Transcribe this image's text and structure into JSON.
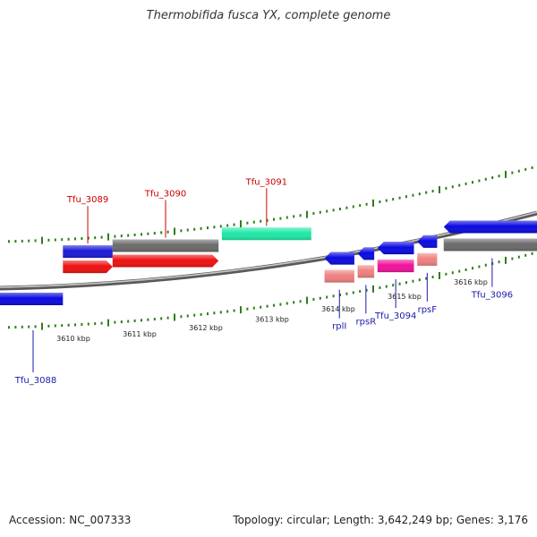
{
  "title": "Thermobifida fusca YX, complete genome",
  "footer": {
    "accession": "Accession: NC_007333",
    "summary": "Topology: circular; Length: 3,642,249 bp; Genes: 3,176"
  },
  "colors": {
    "backbone": "#888888",
    "tick": "#2e7d1a",
    "label_red": "#cc0000",
    "label_blue": "#1a1aa8"
  },
  "scale": {
    "unit": "kbp",
    "labels": [
      {
        "kbp": 3610,
        "text": "3610 kbp"
      },
      {
        "kbp": 3611,
        "text": "3611 kbp"
      },
      {
        "kbp": 3612,
        "text": "3612 kbp"
      },
      {
        "kbp": 3613,
        "text": "3613 kbp"
      },
      {
        "kbp": 3614,
        "text": "3614 kbp"
      },
      {
        "kbp": 3615,
        "text": "3615 kbp"
      },
      {
        "kbp": 3616,
        "text": "3616 kbp"
      }
    ]
  },
  "genes": [
    {
      "name": "Tfu_3088",
      "start_kbp": 3609.0,
      "end_kbp": 3609.95,
      "strand": "-",
      "cds_color": "#0a0ae0",
      "feat_color": "",
      "label_color": "#1a1aa8"
    },
    {
      "name": "Tfu_3089",
      "start_kbp": 3609.95,
      "end_kbp": 3610.7,
      "strand": "+",
      "cds_color": "#ee1111",
      "feat_color": "#1a1ad8",
      "label_color": "#cc0000"
    },
    {
      "name": "Tfu_3090",
      "start_kbp": 3610.7,
      "end_kbp": 3612.3,
      "strand": "+",
      "cds_color": "#ee1111",
      "feat_color": "#6b6b6b",
      "label_color": "#cc0000"
    },
    {
      "name": "Tfu_3091",
      "start_kbp": 3612.35,
      "end_kbp": 3613.7,
      "strand": "+",
      "cds_color": "",
      "feat_color": "#1ee8a6",
      "label_color": "#cc0000"
    },
    {
      "name": "rplI",
      "start_kbp": 3613.9,
      "end_kbp": 3614.35,
      "strand": "-",
      "cds_color": "#0a0ae0",
      "feat_color": "#f08080",
      "label_color": "#1a1aa8"
    },
    {
      "name": "rpsR",
      "start_kbp": 3614.4,
      "end_kbp": 3614.65,
      "strand": "-",
      "cds_color": "#0a0ae0",
      "feat_color": "#f08080",
      "label_color": "#1a1aa8"
    },
    {
      "name": "Tfu_3094",
      "start_kbp": 3614.7,
      "end_kbp": 3615.25,
      "strand": "-",
      "cds_color": "#0a0ae0",
      "feat_color": "#f0129a",
      "label_color": "#1a1aa8"
    },
    {
      "name": "rpsF",
      "start_kbp": 3615.3,
      "end_kbp": 3615.6,
      "strand": "-",
      "cds_color": "#0a0ae0",
      "feat_color": "#f08080",
      "label_color": "#1a1aa8"
    },
    {
      "name": "Tfu_3096",
      "start_kbp": 3615.7,
      "end_kbp": 3617.2,
      "strand": "-",
      "cds_color": "#0a0ae0",
      "feat_color": "#6b6b6b",
      "label_color": "#1a1aa8"
    }
  ]
}
